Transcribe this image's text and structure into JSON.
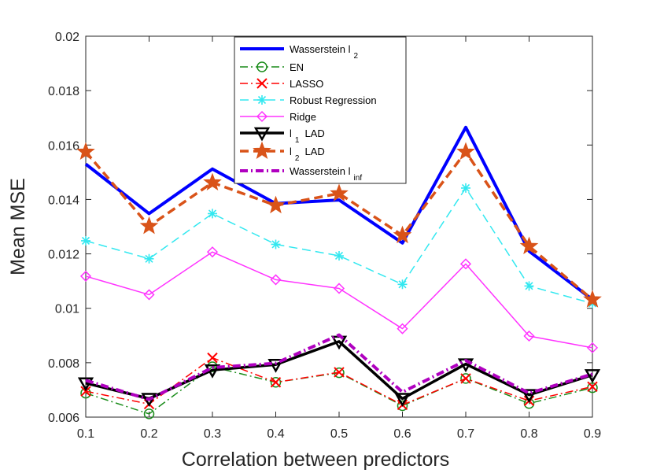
{
  "chart_data": {
    "type": "line",
    "title": "",
    "xlabel": "Correlation between predictors",
    "ylabel": "Mean MSE",
    "xlim": [
      0.1,
      0.9
    ],
    "ylim": [
      0.006,
      0.02
    ],
    "x": [
      0.1,
      0.2,
      0.3,
      0.4,
      0.5,
      0.6,
      0.7,
      0.8,
      0.9
    ],
    "xticks": [
      "0.1",
      "0.2",
      "0.3",
      "0.4",
      "0.5",
      "0.6",
      "0.7",
      "0.8",
      "0.9"
    ],
    "yticks": [
      0.006,
      0.008,
      0.01,
      0.012,
      0.014,
      0.016,
      0.018,
      0.02
    ],
    "yticklabels": [
      "0.006",
      "0.008",
      "0.01",
      "0.012",
      "0.014",
      "0.016",
      "0.018",
      "0.02"
    ],
    "grid": false,
    "legend_position": "top-center",
    "series": [
      {
        "name": "Wasserstein l",
        "sub": "2",
        "color": "#0000ff",
        "dash": "solid",
        "marker": "none",
        "width": 4,
        "values": [
          0.0153,
          0.01348,
          0.01512,
          0.01385,
          0.01398,
          0.0124,
          0.01665,
          0.0121,
          0.01032
        ]
      },
      {
        "name": "EN",
        "sub": "",
        "color": "#1a8c1a",
        "dash": "dashdot",
        "marker": "circle",
        "width": 1.5,
        "values": [
          0.00688,
          0.00612,
          0.00785,
          0.00728,
          0.00763,
          0.00642,
          0.00742,
          0.0065,
          0.00708
        ]
      },
      {
        "name": "LASSO",
        "sub": "",
        "color": "#ff0000",
        "dash": "dashdot",
        "marker": "x",
        "width": 1.5,
        "values": [
          0.00695,
          0.00648,
          0.00818,
          0.00728,
          0.00765,
          0.00645,
          0.00742,
          0.0066,
          0.00712
        ]
      },
      {
        "name": "Robust Regression",
        "sub": "",
        "color": "#33e8f0",
        "dash": "dash",
        "marker": "asterisk",
        "width": 1.5,
        "values": [
          0.01248,
          0.01182,
          0.01348,
          0.01235,
          0.01193,
          0.01088,
          0.01442,
          0.01082,
          0.01018
        ]
      },
      {
        "name": "Ridge",
        "sub": "",
        "color": "#ff33ff",
        "dash": "solid",
        "marker": "diamond",
        "width": 1.5,
        "values": [
          0.01118,
          0.0105,
          0.01207,
          0.01105,
          0.01073,
          0.00925,
          0.01163,
          0.00898,
          0.00855
        ]
      },
      {
        "name": "l",
        "sub": "1",
        "suffix": "LAD",
        "color": "#000000",
        "dash": "solid",
        "marker": "triangle-down",
        "width": 3.5,
        "values": [
          0.00725,
          0.00668,
          0.00773,
          0.00793,
          0.00878,
          0.00668,
          0.00795,
          0.00682,
          0.00755
        ]
      },
      {
        "name": "l",
        "sub": "2",
        "suffix": "LAD",
        "color": "#d95319",
        "dash": "dash",
        "marker": "star",
        "width": 3.5,
        "values": [
          0.01575,
          0.01302,
          0.01462,
          0.01378,
          0.01422,
          0.01268,
          0.01575,
          0.01228,
          0.01032
        ]
      },
      {
        "name": "Wasserstein l",
        "sub": "inf",
        "color": "#b000c0",
        "dash": "dashdot",
        "marker": "none",
        "width": 4,
        "values": [
          0.00735,
          0.00665,
          0.00782,
          0.00798,
          0.00902,
          0.00692,
          0.00808,
          0.00688,
          0.00758
        ]
      }
    ]
  }
}
